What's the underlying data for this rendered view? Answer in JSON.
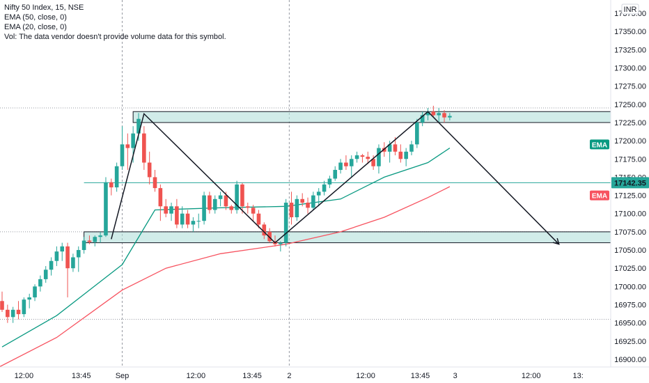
{
  "legend": {
    "title": "Nifty 50 Index, 15, NSE",
    "ema50": "EMA (50, close, 0)",
    "ema20": "EMA (20, close, 0)",
    "volume_note": "Vol: The data vendor doesn't provide volume data for this symbol."
  },
  "currency_badge": "INR",
  "price_tag": "17142.35",
  "ema_tag_teal": "EMA",
  "ema_tag_red": "EMA",
  "colors": {
    "up": "#26a69a",
    "down": "#ef5350",
    "ema20": "#089981",
    "ema50": "#f7525f",
    "zone_fill": "#b2dfdb",
    "zone_stroke": "#131722",
    "hline": "#26a69a",
    "drawing": "#131722"
  },
  "chart_data": {
    "type": "candlestick",
    "symbol": "Nifty 50 Index",
    "interval": "15",
    "exchange": "NSE",
    "y_ticks": [
      17375,
      17350,
      17325,
      17300,
      17275,
      17250,
      17225,
      17200,
      17175,
      17150,
      17125,
      17100,
      17075,
      17050,
      17025,
      17000,
      16975,
      16950,
      16925,
      16900
    ],
    "y_tick_labels": [
      "17375.00",
      "17350.00",
      "17325.00",
      "17300.00",
      "17275.00",
      "17250.00",
      "17225.00",
      "17200.00",
      "17175.00",
      "17150.00",
      "17125.00",
      "17100.00",
      "17075.00",
      "17050.00",
      "17025.00",
      "17000.00",
      "16975.00",
      "16950.00",
      "16925.00",
      "16900.00"
    ],
    "x_tick_labels": [
      {
        "bar": 4,
        "label": "12:00"
      },
      {
        "bar": 14.5,
        "label": "13:45"
      },
      {
        "bar": 22,
        "label": "Sep"
      },
      {
        "bar": 35.5,
        "label": "12:00"
      },
      {
        "bar": 45.8,
        "label": "13:45"
      },
      {
        "bar": 52.6,
        "label": "2"
      },
      {
        "bar": 66.6,
        "label": "12:00"
      },
      {
        "bar": 76.6,
        "label": "13:45"
      },
      {
        "bar": 83,
        "label": "3"
      },
      {
        "bar": 96.9,
        "label": "12:00"
      },
      {
        "bar": 105.5,
        "label": "13:"
      }
    ],
    "session_breaks": [
      22,
      52.6
    ],
    "last_price": 17142.35,
    "candles": [
      [
        16980,
        16993,
        16965,
        16968
      ],
      [
        16968,
        16975,
        16950,
        16958
      ],
      [
        16958,
        16972,
        16950,
        16968
      ],
      [
        16968,
        16980,
        16955,
        16962
      ],
      [
        16962,
        16985,
        16958,
        16982
      ],
      [
        16982,
        16990,
        16970,
        16985
      ],
      [
        16985,
        17003,
        16980,
        17000
      ],
      [
        17000,
        17015,
        16993,
        17010
      ],
      [
        17010,
        17028,
        17005,
        17023
      ],
      [
        17023,
        17040,
        17015,
        17035
      ],
      [
        17035,
        17055,
        17028,
        17048
      ],
      [
        17048,
        17060,
        17035,
        17055
      ],
      [
        17055,
        17060,
        16985,
        17025
      ],
      [
        17025,
        17045,
        17020,
        17040
      ],
      [
        17040,
        17055,
        17020,
        17050
      ],
      [
        17050,
        17068,
        17045,
        17063
      ],
      [
        17063,
        17070,
        17058,
        17061
      ],
      [
        17061,
        17070,
        17055,
        17068
      ],
      [
        17068,
        17075,
        17060,
        17070
      ],
      [
        17070,
        17150,
        17068,
        17143
      ],
      [
        17143,
        17148,
        17125,
        17136
      ],
      [
        17136,
        17170,
        17130,
        17165
      ],
      [
        17165,
        17220,
        17160,
        17195
      ],
      [
        17195,
        17210,
        17160,
        17190
      ],
      [
        17190,
        17220,
        17170,
        17210
      ],
      [
        17210,
        17238,
        17200,
        17230
      ],
      [
        17210,
        17220,
        17160,
        17170
      ],
      [
        17170,
        17185,
        17140,
        17150
      ],
      [
        17150,
        17160,
        17130,
        17135
      ],
      [
        17135,
        17140,
        17090,
        17110
      ],
      [
        17110,
        17120,
        17095,
        17100
      ],
      [
        17100,
        17115,
        17090,
        17110
      ],
      [
        17110,
        17120,
        17080,
        17085
      ],
      [
        17085,
        17110,
        17080,
        17100
      ],
      [
        17100,
        17105,
        17080,
        17085
      ],
      [
        17085,
        17095,
        17075,
        17090
      ],
      [
        17090,
        17100,
        17080,
        17090
      ],
      [
        17090,
        17130,
        17085,
        17125
      ],
      [
        17125,
        17130,
        17100,
        17105
      ],
      [
        17105,
        17125,
        17100,
        17120
      ],
      [
        17120,
        17130,
        17110,
        17125
      ],
      [
        17125,
        17130,
        17105,
        17110
      ],
      [
        17110,
        17112,
        17100,
        17105
      ],
      [
        17105,
        17145,
        17100,
        17140
      ],
      [
        17140,
        17142,
        17100,
        17110
      ],
      [
        17110,
        17115,
        17100,
        17108
      ],
      [
        17108,
        17112,
        17090,
        17100
      ],
      [
        17100,
        17105,
        17080,
        17085
      ],
      [
        17085,
        17088,
        17065,
        17070
      ],
      [
        17075,
        17080,
        17060,
        17062
      ],
      [
        17062,
        17070,
        17055,
        17058
      ],
      [
        17058,
        17062,
        17048,
        17060
      ],
      [
        17060,
        17120,
        17055,
        17115
      ],
      [
        17115,
        17130,
        17085,
        17095
      ],
      [
        17095,
        17125,
        17090,
        17120
      ],
      [
        17120,
        17128,
        17110,
        17115
      ],
      [
        17115,
        17122,
        17100,
        17108
      ],
      [
        17108,
        17130,
        17105,
        17125
      ],
      [
        17125,
        17135,
        17110,
        17130
      ],
      [
        17130,
        17145,
        17125,
        17140
      ],
      [
        17140,
        17152,
        17135,
        17148
      ],
      [
        17148,
        17165,
        17145,
        17160
      ],
      [
        17160,
        17175,
        17155,
        17170
      ],
      [
        17170,
        17180,
        17160,
        17165
      ],
      [
        17165,
        17180,
        17150,
        17175
      ],
      [
        17175,
        17185,
        17170,
        17180
      ],
      [
        17180,
        17182,
        17170,
        17178
      ],
      [
        17178,
        17185,
        17168,
        17175
      ],
      [
        17175,
        17180,
        17160,
        17165
      ],
      [
        17165,
        17195,
        17155,
        17190
      ],
      [
        17190,
        17198,
        17178,
        17185
      ],
      [
        17185,
        17200,
        17170,
        17195
      ],
      [
        17195,
        17205,
        17180,
        17185
      ],
      [
        17185,
        17195,
        17170,
        17175
      ],
      [
        17175,
        17190,
        17165,
        17185
      ],
      [
        17185,
        17200,
        17180,
        17195
      ],
      [
        17195,
        17230,
        17190,
        17225
      ],
      [
        17225,
        17240,
        17220,
        17235
      ],
      [
        17235,
        17245,
        17228,
        17240
      ],
      [
        17240,
        17248,
        17232,
        17235
      ],
      [
        17235,
        17245,
        17225,
        17238
      ],
      [
        17238,
        17242,
        17225,
        17232
      ],
      [
        17232,
        17238,
        17228,
        17234
      ]
    ],
    "ema20": [
      [
        0,
        16917
      ],
      [
        10,
        16960
      ],
      [
        22,
        17030
      ],
      [
        28,
        17105
      ],
      [
        40,
        17108
      ],
      [
        52,
        17110
      ],
      [
        62,
        17120
      ],
      [
        70,
        17150
      ],
      [
        78,
        17170
      ],
      [
        82,
        17190
      ]
    ],
    "ema50": [
      [
        -3,
        16880
      ],
      [
        10,
        16930
      ],
      [
        22,
        16995
      ],
      [
        30,
        17025
      ],
      [
        40,
        17045
      ],
      [
        52,
        17058
      ],
      [
        62,
        17075
      ],
      [
        70,
        17095
      ],
      [
        78,
        17122
      ],
      [
        82,
        17137
      ]
    ],
    "zones": [
      [
        17225,
        17240
      ],
      [
        17060,
        17075
      ]
    ],
    "hline": 17142.35,
    "drawing_path": [
      [
        20,
        17065
      ],
      [
        26,
        17237
      ],
      [
        50,
        17060
      ],
      [
        78,
        17240
      ],
      [
        102,
        17058
      ]
    ]
  }
}
